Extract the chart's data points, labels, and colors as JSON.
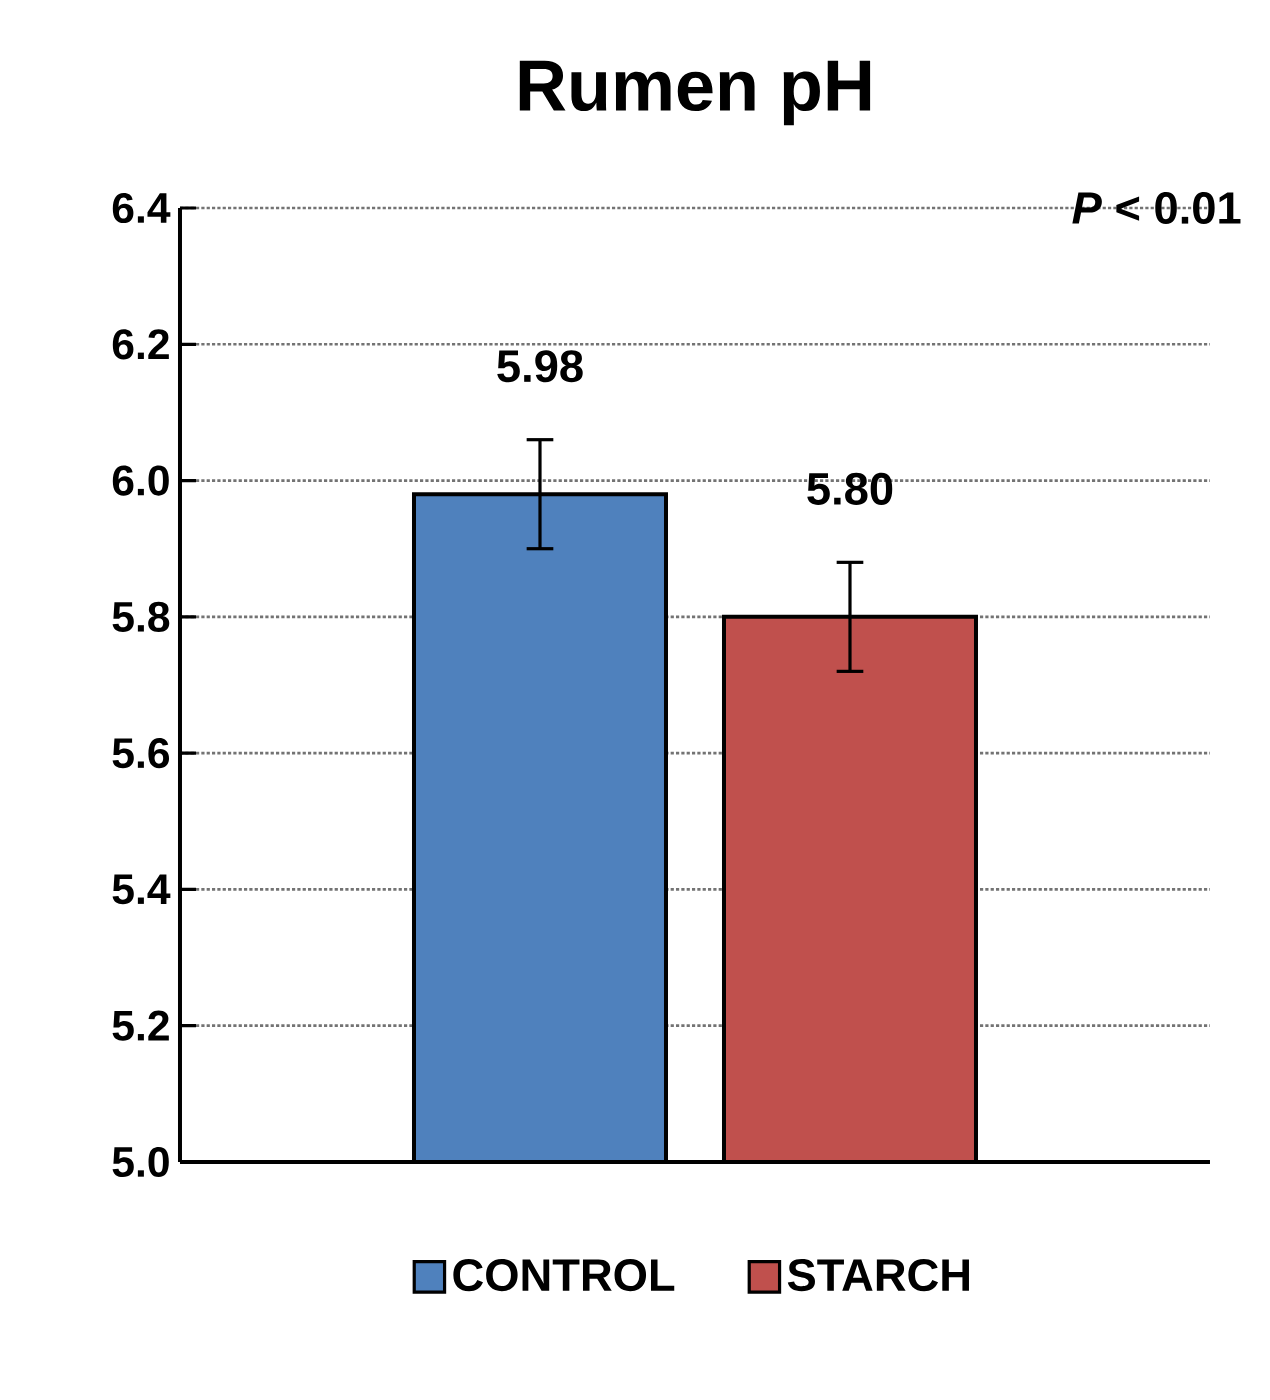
{
  "chart_data": {
    "type": "bar",
    "title": "Rumen pH",
    "categories": [
      null
    ],
    "series": [
      {
        "name": "CONTROL",
        "color": "#4f81bd",
        "values": [
          5.98
        ],
        "errors": [
          0.08
        ],
        "value_labels": [
          "5.98"
        ]
      },
      {
        "name": "STARCH",
        "color": "#c0504d",
        "values": [
          5.8
        ],
        "errors": [
          0.08
        ],
        "value_labels": [
          "5.80"
        ]
      }
    ],
    "ylim": [
      5.0,
      6.4
    ],
    "yticks": [
      {
        "value": 5.0,
        "label": "5.0"
      },
      5.2,
      5.4,
      5.6,
      5.8,
      {
        "value": 6.0,
        "label": "6.0"
      },
      6.2,
      6.4
    ],
    "grid": "y",
    "legend": "bottom",
    "annotations": [
      "*P* < 0.01"
    ]
  }
}
